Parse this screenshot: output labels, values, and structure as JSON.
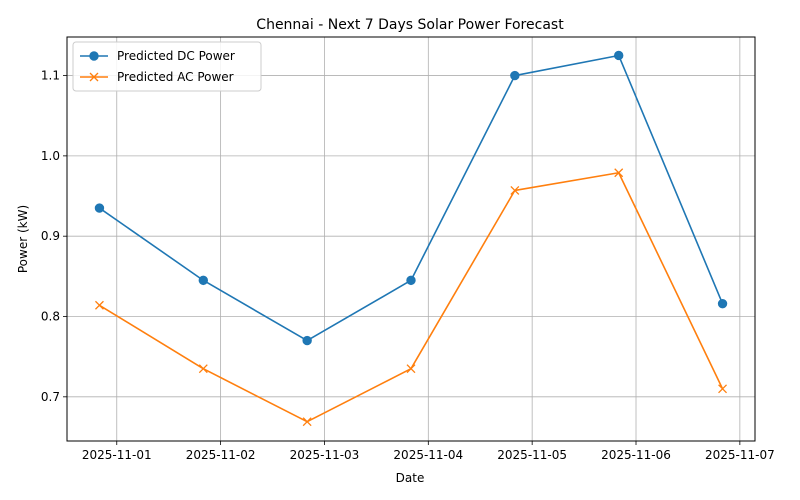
{
  "chart_data": {
    "type": "line",
    "title": "Chennai - Next 7 Days Solar Power Forecast",
    "xlabel": "Date",
    "ylabel": "Power (kW)",
    "x": [
      "2025-10-31 20:00",
      "2025-11-01 20:00",
      "2025-11-02 20:00",
      "2025-11-03 20:00",
      "2025-11-04 20:00",
      "2025-11-05 20:00",
      "2025-11-06 20:00"
    ],
    "x_ticks": [
      "2025-11-01",
      "2025-11-02",
      "2025-11-03",
      "2025-11-04",
      "2025-11-05",
      "2025-11-06",
      "2025-11-07"
    ],
    "xlim": [
      "2025-10-31 12:30",
      "2025-11-07 03:30"
    ],
    "y_ticks": [
      "0.7",
      "0.8",
      "0.9",
      "1.0",
      "1.1"
    ],
    "ylim": [
      0.645,
      1.148
    ],
    "grid": true,
    "legend_position": "upper-left",
    "series": [
      {
        "name": "Predicted DC Power",
        "values": [
          0.935,
          0.845,
          0.77,
          0.845,
          1.1,
          1.125,
          0.816
        ],
        "color": "#1f77b4",
        "marker": "circle"
      },
      {
        "name": "Predicted AC Power",
        "values": [
          0.814,
          0.735,
          0.669,
          0.735,
          0.957,
          0.979,
          0.71
        ],
        "color": "#ff7f0e",
        "marker": "x"
      }
    ]
  }
}
